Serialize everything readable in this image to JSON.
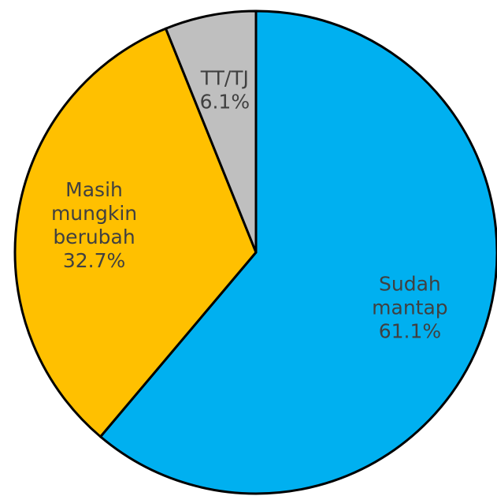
{
  "chart_data": {
    "type": "pie",
    "categories": [
      "Sudah mantap",
      "Masih mungkin berubah",
      "TT/TJ"
    ],
    "values": [
      61.1,
      32.7,
      6.1
    ],
    "value_labels": [
      "61.1%",
      "32.7%",
      "6.1%"
    ],
    "colors": [
      "#00b0f0",
      "#ffc000",
      "#bfbfbf"
    ]
  }
}
